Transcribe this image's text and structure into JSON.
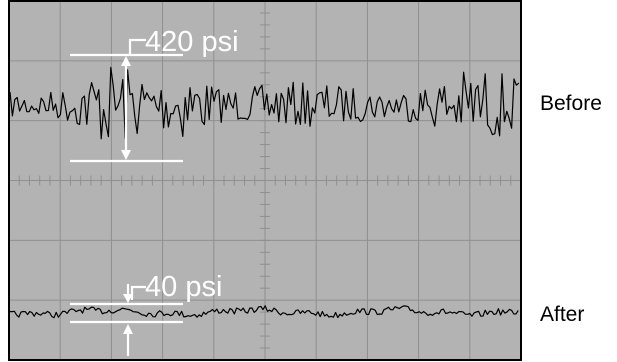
{
  "traces": [
    {
      "label": "Before",
      "peak_to_peak": "420 psi",
      "kind": "high-amplitude"
    },
    {
      "label": "After",
      "peak_to_peak": "40 psi",
      "kind": "low-amplitude"
    }
  ],
  "colors": {
    "screen_bg": "#b3b3b3",
    "grid": "#8f8f8f",
    "trace": "#000000",
    "annotation": "#ffffff",
    "frame": "#000000"
  },
  "grid": {
    "columns": 10,
    "rows": 6
  }
}
